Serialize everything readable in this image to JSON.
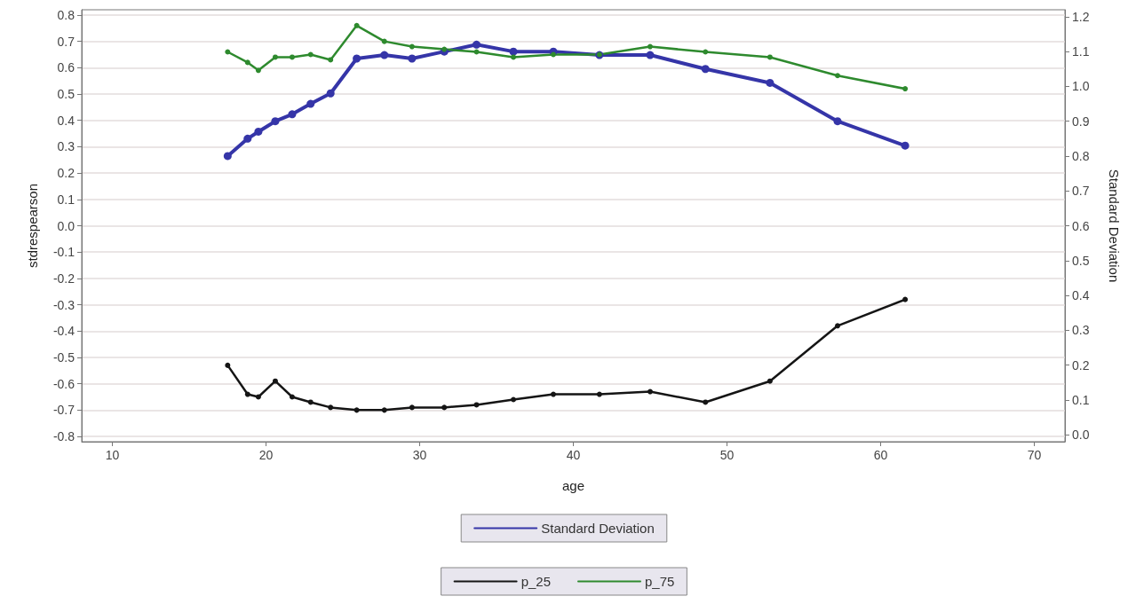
{
  "chart_data": {
    "type": "line",
    "xlabel": "age",
    "ylabel": "stdrespearson",
    "y2label": "Standard Deviation",
    "x": [
      17.5,
      18.8,
      19.5,
      20.6,
      21.7,
      22.9,
      24.2,
      25.9,
      27.7,
      29.5,
      31.6,
      33.7,
      36.1,
      38.7,
      41.7,
      45.0,
      48.6,
      52.8,
      57.2,
      61.6
    ],
    "series": [
      {
        "name": "Standard Deviation",
        "color": "#3535a8",
        "axis": "y2",
        "values": [
          0.8,
          0.85,
          0.87,
          0.9,
          0.92,
          0.95,
          0.98,
          1.08,
          1.09,
          1.08,
          1.1,
          1.12,
          1.1,
          1.1,
          1.09,
          1.09,
          1.05,
          1.01,
          0.9,
          0.83
        ]
      },
      {
        "name": "p_25",
        "color": "#151515",
        "values": [
          -0.53,
          -0.64,
          -0.65,
          -0.59,
          -0.65,
          -0.67,
          -0.69,
          -0.7,
          -0.7,
          -0.69,
          -0.69,
          -0.68,
          -0.66,
          -0.64,
          -0.64,
          -0.63,
          -0.67,
          -0.59,
          -0.38,
          -0.28
        ]
      },
      {
        "name": "p_75",
        "color": "#2e8a2e",
        "values": [
          0.66,
          0.62,
          0.59,
          0.64,
          0.64,
          0.65,
          0.63,
          0.76,
          0.7,
          0.68,
          0.67,
          0.66,
          0.64,
          0.65,
          0.65,
          0.68,
          0.66,
          0.64,
          0.57,
          0.52
        ]
      }
    ],
    "xlim": [
      8,
      72
    ],
    "xticks": [
      10,
      20,
      30,
      40,
      50,
      60,
      70
    ],
    "ylim": [
      -0.82,
      0.82
    ],
    "yticks": [
      -0.8,
      -0.7,
      -0.6,
      -0.5,
      -0.4,
      -0.3,
      -0.2,
      -0.1,
      {
        "value": 0,
        "label": "0.0"
      },
      0.1,
      0.2,
      0.3,
      0.4,
      0.5,
      0.6,
      0.7,
      0.8
    ],
    "y2lim": [
      -0.02,
      1.22
    ],
    "y2ticks": [
      {
        "value": 0,
        "label": "0.0"
      },
      0.1,
      0.2,
      0.3,
      0.4,
      0.5,
      0.6,
      0.7,
      0.8,
      0.9,
      {
        "value": 1,
        "label": "1.0"
      },
      1.1,
      1.2
    ],
    "grid": "y",
    "legend": "bottom",
    "marker": "circle",
    "line_style": "solid"
  }
}
